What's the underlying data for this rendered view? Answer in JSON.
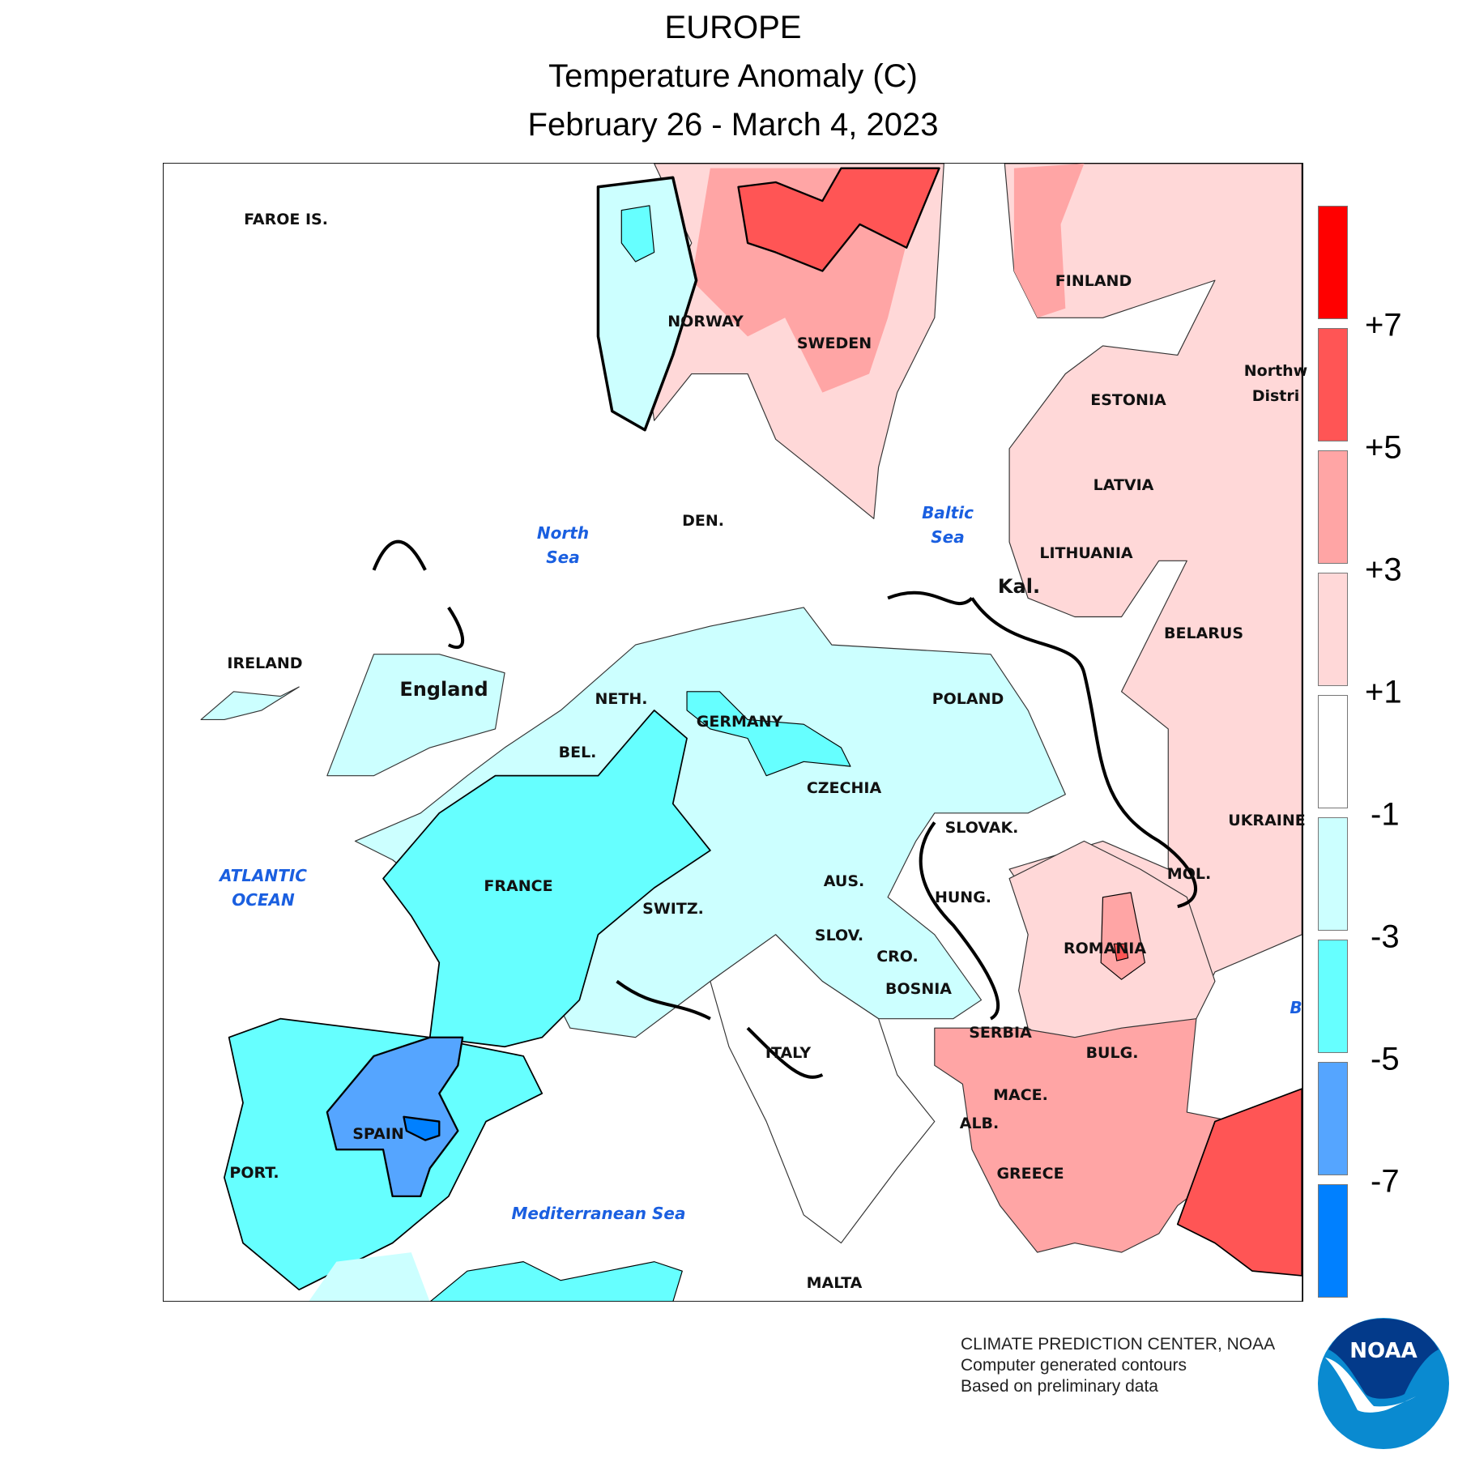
{
  "header": {
    "region": "EUROPE",
    "title": "Temperature Anomaly (C)",
    "period": "February 26 - March 4, 2023"
  },
  "labels": {
    "countries": [
      {
        "name": "FAROE IS."
      },
      {
        "name": "NORWAY"
      },
      {
        "name": "SWEDEN"
      },
      {
        "name": "FINLAND"
      },
      {
        "name": "ESTONIA"
      },
      {
        "name": "LATVIA"
      },
      {
        "name": "LITHUANIA"
      },
      {
        "name": "Kal."
      },
      {
        "name": "BELARUS"
      },
      {
        "name": "Northw"
      },
      {
        "name": "Distri"
      },
      {
        "name": "DEN."
      },
      {
        "name": "IRELAND"
      },
      {
        "name": "England"
      },
      {
        "name": "NETH."
      },
      {
        "name": "GERMANY"
      },
      {
        "name": "POLAND"
      },
      {
        "name": "BEL."
      },
      {
        "name": "CZECHIA"
      },
      {
        "name": "UKRAINE"
      },
      {
        "name": "SLOVAK."
      },
      {
        "name": "FRANCE"
      },
      {
        "name": "AUS."
      },
      {
        "name": "MOL."
      },
      {
        "name": "HUNG."
      },
      {
        "name": "SWITZ."
      },
      {
        "name": "SLOV."
      },
      {
        "name": "CRO."
      },
      {
        "name": "ROMANIA"
      },
      {
        "name": "BOSNIA"
      },
      {
        "name": "SERBIA"
      },
      {
        "name": "ITALY"
      },
      {
        "name": "BULG."
      },
      {
        "name": "MACE."
      },
      {
        "name": "ALB."
      },
      {
        "name": "SPAIN"
      },
      {
        "name": "PORT."
      },
      {
        "name": "GREECE"
      },
      {
        "name": "MALTA"
      }
    ],
    "seas": {
      "north_sea": [
        "North",
        "Sea"
      ],
      "baltic_sea": [
        "Baltic",
        "Sea"
      ],
      "atlantic": [
        "ATLANTIC",
        "OCEAN"
      ],
      "mediterranean": "Mediterranean Sea",
      "black_sea_partial": "B"
    }
  },
  "legend": {
    "colors": [
      "#ff0000",
      "#ff5555",
      "#ffa5a5",
      "#ffd8d8",
      "#ffffff",
      "#ccffff",
      "#66ffff",
      "#55a5ff",
      "#0080ff"
    ],
    "ticks": [
      "+7",
      "+5",
      "+3",
      "+1",
      "-1",
      "-3",
      "-5",
      "-7"
    ]
  },
  "footer": {
    "line1": "CLIMATE PREDICTION CENTER, NOAA",
    "line2": "Computer generated contours",
    "line3": "Based on preliminary data",
    "logo_text": "NOAA"
  },
  "chart_data": {
    "type": "heatmap",
    "title": "EUROPE Temperature Anomaly (C) February 26 - March 4, 2023",
    "units": "C",
    "contour_levels": [
      -7,
      -5,
      -3,
      -1,
      1,
      3,
      5,
      7
    ],
    "regions": [
      {
        "name": "Sweden (north)",
        "anomaly_range": "+5 to +7, locally >+7"
      },
      {
        "name": "Norway (west)",
        "anomaly_range": "-3 to +1"
      },
      {
        "name": "Finland / Baltics / Belarus / Ukraine",
        "anomaly_range": "+1 to +3"
      },
      {
        "name": "Germany / Poland / UK",
        "anomaly_range": "-3 to -1"
      },
      {
        "name": "France",
        "anomaly_range": "-5 to -3"
      },
      {
        "name": "Spain (interior)",
        "anomaly_range": "-7 to -5, locally <-7"
      },
      {
        "name": "Romania",
        "anomaly_range": "+1 to +3, locally +5"
      },
      {
        "name": "Greece / Bulgaria",
        "anomaly_range": "+3 to +5"
      },
      {
        "name": "Turkey (west)",
        "anomaly_range": "+5 to +7"
      }
    ]
  }
}
